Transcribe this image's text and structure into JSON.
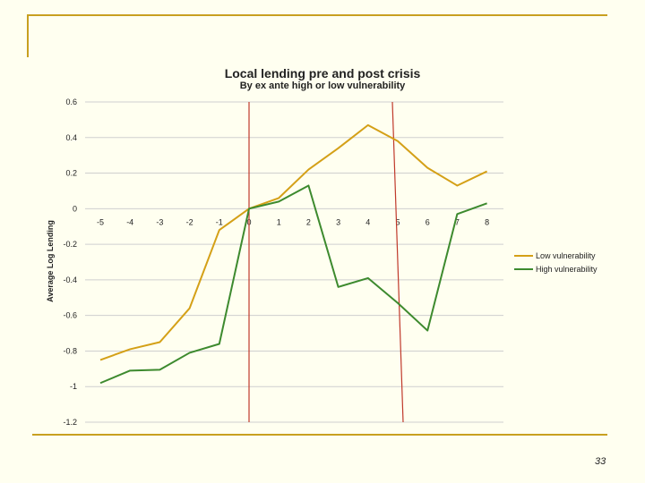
{
  "slide": {
    "page_number": "33"
  },
  "chart_data": {
    "type": "line",
    "title": "Local lending pre and post crisis",
    "subtitle": "By ex ante high or low vulnerability",
    "ylabel": "Average Log Lending",
    "xlabel": "",
    "x": [
      -5,
      -4,
      -3,
      -2,
      -1,
      0,
      1,
      2,
      3,
      4,
      5,
      6,
      7,
      8
    ],
    "yticks": [
      "0.6",
      "0.4",
      "0.2",
      "0",
      "-0.2",
      "-0.4",
      "-0.6",
      "-0.8",
      "-1",
      "-1.2"
    ],
    "ylim": [
      -1.2,
      0.6
    ],
    "grid": true,
    "legend": "right",
    "series": [
      {
        "name": "Low vulnerability",
        "color": "#d4a017",
        "values": [
          -0.85,
          -0.79,
          -0.75,
          -0.56,
          -0.12,
          0.0,
          0.06,
          0.22,
          0.34,
          0.47,
          0.38,
          0.23,
          0.13,
          0.21
        ]
      },
      {
        "name": "High vulnerability",
        "color": "#3d8a2e",
        "values": [
          -0.98,
          -0.91,
          -0.905,
          -0.81,
          -0.76,
          0.0,
          0.04,
          0.13,
          -0.44,
          -0.39,
          -0.53,
          -0.685,
          -0.03,
          0.03
        ]
      }
    ],
    "vertical_markers": [
      {
        "x": 0,
        "color": "#c0392b"
      },
      {
        "x": 5,
        "color": "#c0392b"
      }
    ]
  }
}
